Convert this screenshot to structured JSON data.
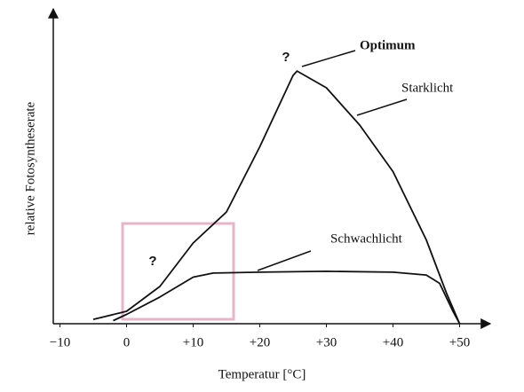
{
  "chart_data": {
    "type": "line",
    "xlabel": "Temperatur [°C]",
    "ylabel": "relative Fotosyntheserate",
    "xlim": [
      -11,
      54
    ],
    "ylim": [
      0,
      100
    ],
    "xticks": [
      {
        "value": -10,
        "label": "−10"
      },
      0,
      {
        "value": 10,
        "label": "+10"
      },
      {
        "value": 20,
        "label": "+20"
      },
      {
        "value": 30,
        "label": "+30"
      },
      {
        "value": 40,
        "label": "+40"
      },
      {
        "value": 50,
        "label": "+50"
      }
    ],
    "grid": false,
    "series": [
      {
        "name": "Starklicht",
        "color": "#111111",
        "x": [
          -5,
          0,
          5,
          10,
          15,
          20,
          25,
          25.6,
          30,
          35,
          40,
          45,
          48,
          50
        ],
        "values": [
          1.4,
          4,
          12,
          26,
          36,
          57,
          80,
          81.4,
          76,
          64,
          49,
          27,
          10,
          0
        ]
      },
      {
        "name": "Schwachlicht",
        "color": "#111111",
        "x": [
          -2,
          0,
          5,
          10,
          13,
          20,
          30,
          40,
          45,
          47,
          49,
          50
        ],
        "values": [
          1,
          3,
          8.6,
          15,
          16.3,
          16.6,
          16.9,
          16.6,
          15.7,
          13,
          4,
          0
        ]
      }
    ],
    "annotations": [
      {
        "text": "Optimum"
      },
      {
        "text": "?"
      },
      {
        "text": "?"
      }
    ]
  }
}
